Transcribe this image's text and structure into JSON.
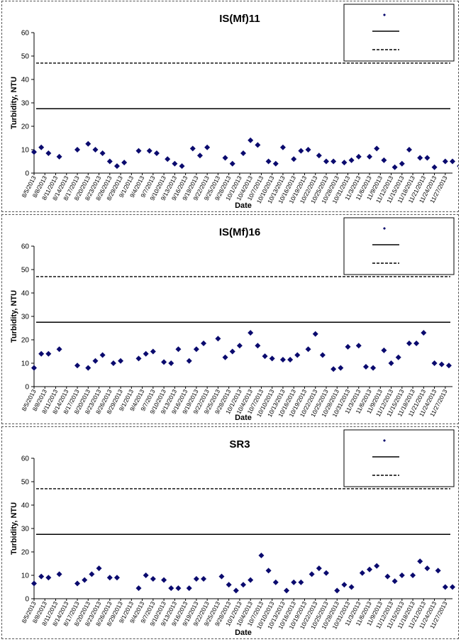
{
  "chart_data": [
    {
      "type": "scatter",
      "title": "IS(Mf)11",
      "xlabel": "Date",
      "ylabel": "Turbidity, NTU",
      "ylim": [
        0,
        60
      ],
      "yticks": [
        0,
        10,
        20,
        30,
        40,
        50,
        60
      ],
      "xlim": [
        "8/5/2013",
        "11/29/2013"
      ],
      "xtick_labels": [
        "8/5/2013",
        "8/8/2013",
        "8/11/2013",
        "8/14/2013",
        "8/17/2013",
        "8/20/2013",
        "8/23/2013",
        "8/26/2013",
        "8/29/2013",
        "9/1/2013",
        "9/4/2013",
        "9/7/2013",
        "9/10/2013",
        "9/13/2013",
        "9/16/2013",
        "9/19/2013",
        "9/22/2013",
        "9/25/2013",
        "9/28/2013",
        "10/1/2013",
        "10/4/2013",
        "10/7/2013",
        "10/10/2013",
        "10/13/2013",
        "10/16/2013",
        "10/19/2013",
        "10/22/2013",
        "10/25/2013",
        "10/28/2013",
        "10/31/2013",
        "11/3/2013",
        "11/6/2013",
        "11/9/2013",
        "11/12/2013",
        "11/15/2013",
        "11/18/2013",
        "11/21/2013",
        "11/24/2013",
        "11/27/2013"
      ],
      "acute_level": 47,
      "chronic_level": 27.5,
      "legend_position": "top-right",
      "grid": false,
      "marker_color": "#0a0a6e",
      "series": [
        {
          "x": [
            "8/5/2013",
            "8/7/2013",
            "8/9/2013",
            "8/12/2013",
            "8/17/2013",
            "8/20/2013",
            "8/22/2013",
            "8/24/2013",
            "8/26/2013",
            "8/28/2013",
            "8/30/2013",
            "9/3/2013",
            "9/6/2013",
            "9/8/2013",
            "9/11/2013",
            "9/13/2013",
            "9/15/2013",
            "9/18/2013",
            "9/20/2013",
            "9/22/2013",
            "9/27/2013",
            "9/29/2013",
            "10/2/2013",
            "10/4/2013",
            "10/6/2013",
            "10/9/2013",
            "10/11/2013",
            "10/13/2013",
            "10/16/2013",
            "10/18/2013",
            "10/20/2013",
            "10/23/2013",
            "10/25/2013",
            "10/27/2013",
            "10/30/2013",
            "11/1/2013",
            "11/3/2013",
            "11/6/2013",
            "11/8/2013",
            "11/10/2013",
            "11/13/2013",
            "11/15/2013",
            "11/17/2013",
            "11/20/2013",
            "11/22/2013",
            "11/24/2013",
            "11/27/2013",
            "11/29/2013",
            "12/1/2013"
          ],
          "y": [
            9,
            11,
            8.5,
            7,
            10,
            12.5,
            10,
            8.5,
            5,
            3,
            4.5,
            9.5,
            9.5,
            8.5,
            6,
            4,
            3,
            10.5,
            7.5,
            11,
            6.5,
            4,
            8.5,
            14,
            12,
            5,
            4,
            11,
            6,
            9.5,
            10,
            7.5,
            5,
            5,
            4.5,
            5.5,
            7,
            7,
            10.5,
            5.5,
            2.5,
            4,
            10,
            6.5,
            6.5,
            2.5,
            5,
            5,
            3
          ]
        }
      ]
    },
    {
      "type": "scatter",
      "title": "IS(Mf)16",
      "xlabel": "Date",
      "ylabel": "Turbidity, NTU",
      "ylim": [
        0,
        60
      ],
      "yticks": [
        0,
        10,
        20,
        30,
        40,
        50,
        60
      ],
      "xlim": [
        "8/5/2013",
        "11/29/2013"
      ],
      "xtick_labels": [
        "8/5/2013",
        "8/8/2013",
        "8/11/2013",
        "8/14/2013",
        "8/17/2013",
        "8/20/2013",
        "8/23/2013",
        "8/26/2013",
        "8/29/2013",
        "9/1/2013",
        "9/4/2013",
        "9/7/2013",
        "9/10/2013",
        "9/13/2013",
        "9/16/2013",
        "9/19/2013",
        "9/22/2013",
        "9/25/2013",
        "9/28/2013",
        "10/1/2013",
        "10/4/2013",
        "10/7/2013",
        "10/10/2013",
        "10/13/2013",
        "10/16/2013",
        "10/19/2013",
        "10/22/2013",
        "10/25/2013",
        "10/28/2013",
        "10/31/2013",
        "11/3/2013",
        "11/6/2013",
        "11/9/2013",
        "11/12/2013",
        "11/15/2013",
        "11/18/2013",
        "11/21/2013",
        "11/24/2013",
        "11/27/2013"
      ],
      "acute_level": 47,
      "chronic_level": 27.5,
      "legend_position": "top-right",
      "grid": false,
      "marker_color": "#0a0a6e",
      "series": [
        {
          "x": [
            "8/5/2013",
            "8/7/2013",
            "8/9/2013",
            "8/12/2013",
            "8/17/2013",
            "8/20/2013",
            "8/22/2013",
            "8/24/2013",
            "8/27/2013",
            "8/29/2013",
            "9/3/2013",
            "9/5/2013",
            "9/7/2013",
            "9/10/2013",
            "9/12/2013",
            "9/14/2013",
            "9/17/2013",
            "9/19/2013",
            "9/21/2013",
            "9/25/2013",
            "9/27/2013",
            "9/29/2013",
            "10/1/2013",
            "10/4/2013",
            "10/6/2013",
            "10/8/2013",
            "10/10/2013",
            "10/13/2013",
            "10/15/2013",
            "10/17/2013",
            "10/20/2013",
            "10/22/2013",
            "10/24/2013",
            "10/27/2013",
            "10/29/2013",
            "10/31/2013",
            "11/3/2013",
            "11/5/2013",
            "11/7/2013",
            "11/10/2013",
            "11/12/2013",
            "11/14/2013",
            "11/17/2013",
            "11/19/2013",
            "11/21/2013",
            "11/24/2013",
            "11/26/2013",
            "11/28/2013"
          ],
          "y": [
            8,
            14,
            14,
            16,
            9,
            8,
            11,
            13.5,
            10,
            11,
            12,
            14,
            15,
            10.5,
            10,
            16,
            11,
            16,
            18.5,
            20.5,
            12.5,
            15,
            17.5,
            23,
            17.5,
            13,
            12,
            11.5,
            11.5,
            13.5,
            16,
            22.5,
            13.5,
            7.5,
            8,
            17,
            17.5,
            8.5,
            8,
            15.5,
            10,
            12.5,
            18.5,
            18.5,
            23,
            10,
            9.5,
            9
          ]
        }
      ]
    },
    {
      "type": "scatter",
      "title": "SR3",
      "xlabel": "Date",
      "ylabel": "Turbidity, NTU",
      "ylim": [
        0,
        60
      ],
      "yticks": [
        0,
        10,
        20,
        30,
        40,
        50,
        60
      ],
      "xlim": [
        "8/5/2013",
        "11/29/2013"
      ],
      "xtick_labels": [
        "8/5/2013",
        "8/8/2013",
        "8/11/2013",
        "8/14/2013",
        "8/17/2013",
        "8/20/2013",
        "8/23/2013",
        "8/26/2013",
        "8/29/2013",
        "9/1/2013",
        "9/4/2013",
        "9/7/2013",
        "9/10/2013",
        "9/13/2013",
        "9/16/2013",
        "9/19/2013",
        "9/22/2013",
        "9/25/2013",
        "9/28/2013",
        "10/1/2013",
        "10/4/2013",
        "10/7/2013",
        "10/10/2013",
        "10/13/2013",
        "10/16/2013",
        "10/19/2013",
        "10/22/2013",
        "10/25/2013",
        "10/28/2013",
        "10/31/2013",
        "11/3/2013",
        "11/6/2013",
        "11/9/2013",
        "11/12/2013",
        "11/15/2013",
        "11/18/2013",
        "11/21/2013",
        "11/24/2013",
        "11/27/2013"
      ],
      "acute_level": 47,
      "chronic_level": 27.5,
      "legend_position": "top-right",
      "grid": false,
      "marker_color": "#0a0a6e",
      "series": [
        {
          "x": [
            "8/5/2013",
            "8/7/2013",
            "8/9/2013",
            "8/12/2013",
            "8/17/2013",
            "8/19/2013",
            "8/21/2013",
            "8/23/2013",
            "8/26/2013",
            "8/28/2013",
            "9/3/2013",
            "9/5/2013",
            "9/7/2013",
            "9/10/2013",
            "9/12/2013",
            "9/14/2013",
            "9/17/2013",
            "9/19/2013",
            "9/21/2013",
            "9/26/2013",
            "9/28/2013",
            "9/30/2013",
            "10/2/2013",
            "10/4/2013",
            "10/7/2013",
            "10/9/2013",
            "10/11/2013",
            "10/14/2013",
            "10/16/2013",
            "10/18/2013",
            "10/21/2013",
            "10/23/2013",
            "10/25/2013",
            "10/28/2013",
            "10/30/2013",
            "11/1/2013",
            "11/4/2013",
            "11/6/2013",
            "11/8/2013",
            "11/11/2013",
            "11/13/2013",
            "11/15/2013",
            "11/18/2013",
            "11/20/2013",
            "11/22/2013",
            "11/25/2013",
            "11/27/2013",
            "11/29/2013"
          ],
          "y": [
            6.5,
            9.5,
            9,
            10.5,
            6.5,
            8,
            10.5,
            13,
            9,
            9,
            4.5,
            10,
            8.5,
            8,
            4.5,
            4.5,
            4.5,
            8.5,
            8.5,
            9.5,
            6,
            3.5,
            6,
            8,
            18.5,
            12,
            7,
            3.5,
            7,
            7,
            10.5,
            13,
            11,
            3.5,
            6,
            5,
            11,
            12.5,
            14,
            9.5,
            7.5,
            10,
            10,
            16,
            13,
            12,
            5,
            5
          ]
        }
      ]
    }
  ]
}
